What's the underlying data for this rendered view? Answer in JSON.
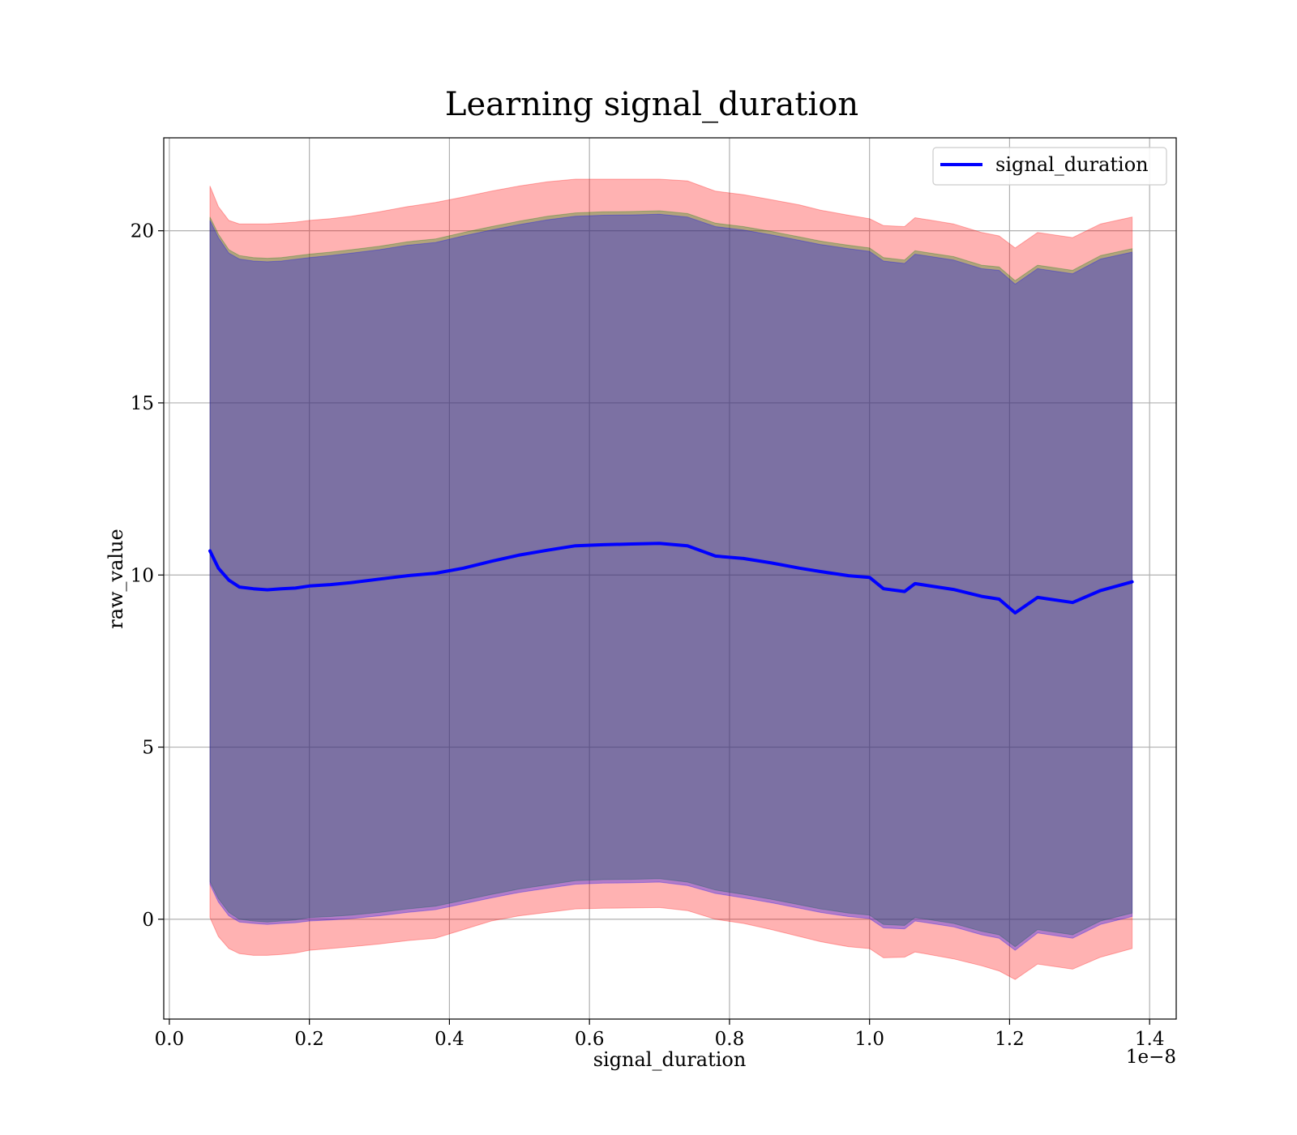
{
  "chart_data": {
    "type": "line",
    "title": "Learning signal_duration",
    "xlabel": "signal_duration",
    "ylabel": "raw_value",
    "x_offset_label": "1e−8",
    "xlim": [
      -0.008,
      1.438
    ],
    "ylim": [
      -2.9,
      22.7
    ],
    "x_ticks": [
      0.0,
      0.2,
      0.4,
      0.6,
      0.8,
      1.0,
      1.2,
      1.4
    ],
    "x_tick_labels": [
      "0.0",
      "0.2",
      "0.4",
      "0.6",
      "0.8",
      "1.0",
      "1.2",
      "1.4"
    ],
    "y_ticks": [
      0,
      5,
      10,
      15,
      20
    ],
    "y_tick_labels": [
      "0",
      "5",
      "10",
      "15",
      "20"
    ],
    "grid": true,
    "legend_position": "upper right",
    "x": [
      0.058,
      0.07,
      0.085,
      0.1,
      0.12,
      0.14,
      0.16,
      0.18,
      0.2,
      0.23,
      0.26,
      0.3,
      0.34,
      0.38,
      0.42,
      0.46,
      0.5,
      0.54,
      0.58,
      0.62,
      0.66,
      0.7,
      0.74,
      0.78,
      0.82,
      0.86,
      0.9,
      0.93,
      0.97,
      1.0,
      1.02,
      1.05,
      1.065,
      1.12,
      1.16,
      1.185,
      1.208,
      1.24,
      1.29,
      1.33,
      1.375
    ],
    "series": [
      {
        "name": "signal_duration",
        "color": "#0000ff",
        "y": [
          10.7,
          10.2,
          9.85,
          9.65,
          9.6,
          9.57,
          9.6,
          9.62,
          9.68,
          9.72,
          9.78,
          9.88,
          9.98,
          10.05,
          10.2,
          10.4,
          10.58,
          10.72,
          10.85,
          10.88,
          10.9,
          10.92,
          10.85,
          10.55,
          10.48,
          10.35,
          10.2,
          10.1,
          9.98,
          9.93,
          9.6,
          9.52,
          9.75,
          9.58,
          9.38,
          9.3,
          8.9,
          9.35,
          9.2,
          9.55,
          9.8
        ]
      }
    ],
    "bands": [
      {
        "color": "#ff0000",
        "opacity": 0.3,
        "lower": [
          0.05,
          -0.5,
          -0.85,
          -1.0,
          -1.05,
          -1.05,
          -1.02,
          -0.98,
          -0.9,
          -0.85,
          -0.8,
          -0.72,
          -0.62,
          -0.55,
          -0.3,
          -0.05,
          0.1,
          0.2,
          0.3,
          0.32,
          0.33,
          0.34,
          0.25,
          0.0,
          -0.12,
          -0.3,
          -0.5,
          -0.65,
          -0.8,
          -0.85,
          -1.12,
          -1.1,
          -0.95,
          -1.15,
          -1.35,
          -1.5,
          -1.75,
          -1.3,
          -1.45,
          -1.1,
          -0.85
        ],
        "upper": [
          21.3,
          20.7,
          20.3,
          20.2,
          20.2,
          20.2,
          20.22,
          20.25,
          20.3,
          20.35,
          20.42,
          20.55,
          20.7,
          20.82,
          20.98,
          21.15,
          21.3,
          21.42,
          21.5,
          21.5,
          21.5,
          21.5,
          21.45,
          21.15,
          21.05,
          20.9,
          20.75,
          20.6,
          20.45,
          20.35,
          20.15,
          20.12,
          20.38,
          20.2,
          19.95,
          19.85,
          19.5,
          19.95,
          19.8,
          20.2,
          20.4
        ]
      },
      {
        "color": "#008000",
        "opacity": 0.3,
        "lower": [
          1.1,
          0.6,
          0.2,
          0.0,
          -0.05,
          -0.08,
          -0.05,
          -0.02,
          0.05,
          0.08,
          0.12,
          0.2,
          0.3,
          0.38,
          0.55,
          0.72,
          0.88,
          1.0,
          1.12,
          1.15,
          1.16,
          1.18,
          1.08,
          0.85,
          0.72,
          0.58,
          0.42,
          0.3,
          0.18,
          0.12,
          -0.15,
          -0.18,
          0.05,
          -0.12,
          -0.35,
          -0.45,
          -0.8,
          -0.3,
          -0.45,
          -0.05,
          0.18
        ],
        "upper": [
          20.4,
          19.9,
          19.45,
          19.28,
          19.22,
          19.2,
          19.22,
          19.27,
          19.32,
          19.38,
          19.45,
          19.55,
          19.68,
          19.76,
          19.95,
          20.12,
          20.28,
          20.42,
          20.52,
          20.55,
          20.56,
          20.58,
          20.5,
          20.22,
          20.12,
          19.98,
          19.82,
          19.7,
          19.58,
          19.5,
          19.22,
          19.15,
          19.42,
          19.25,
          19.0,
          18.95,
          18.55,
          19.0,
          18.85,
          19.28,
          19.48
        ]
      },
      {
        "color": "#0000ff",
        "opacity": 0.3,
        "lower": [
          1.02,
          0.5,
          0.1,
          -0.08,
          -0.12,
          -0.15,
          -0.12,
          -0.1,
          -0.05,
          -0.02,
          0.02,
          0.1,
          0.2,
          0.28,
          0.45,
          0.62,
          0.78,
          0.9,
          1.02,
          1.05,
          1.06,
          1.08,
          0.98,
          0.75,
          0.62,
          0.48,
          0.32,
          0.2,
          0.08,
          0.02,
          -0.25,
          -0.28,
          -0.05,
          -0.22,
          -0.45,
          -0.55,
          -0.9,
          -0.4,
          -0.55,
          -0.15,
          0.08
        ],
        "upper": [
          20.3,
          19.8,
          19.35,
          19.18,
          19.12,
          19.1,
          19.12,
          19.17,
          19.22,
          19.28,
          19.35,
          19.45,
          19.58,
          19.66,
          19.85,
          20.02,
          20.18,
          20.32,
          20.42,
          20.45,
          20.46,
          20.48,
          20.4,
          20.12,
          20.02,
          19.88,
          19.72,
          19.6,
          19.48,
          19.4,
          19.12,
          19.05,
          19.32,
          19.15,
          18.9,
          18.85,
          18.45,
          18.9,
          18.75,
          19.18,
          19.38
        ]
      }
    ]
  }
}
